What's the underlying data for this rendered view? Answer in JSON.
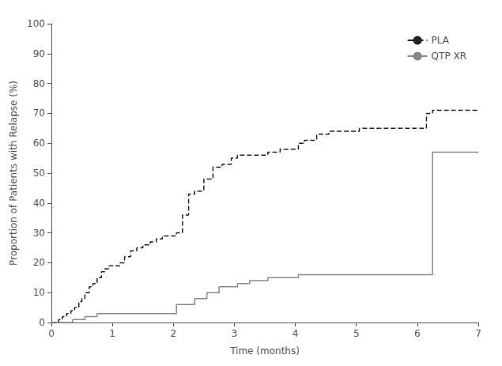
{
  "chart_data": {
    "type": "step",
    "xlabel": "Time (months)",
    "ylabel": "Proportion of Patients with Relapse (%)",
    "xlim": [
      0,
      7
    ],
    "ylim": [
      0,
      100
    ],
    "xticks": [
      0,
      1,
      2,
      3,
      4,
      5,
      6,
      7
    ],
    "yticks": [
      0,
      10,
      20,
      30,
      40,
      50,
      60,
      70,
      80,
      90,
      100
    ],
    "grid": false,
    "legend": "upper right",
    "series": [
      {
        "name": "PLA",
        "color": "#222222",
        "line_style": "dashed",
        "x": [
          0,
          0.12,
          0.18,
          0.25,
          0.32,
          0.38,
          0.45,
          0.5,
          0.55,
          0.62,
          0.68,
          0.75,
          0.82,
          0.88,
          0.95,
          1.05,
          1.12,
          1.2,
          1.3,
          1.4,
          1.5,
          1.62,
          1.72,
          1.82,
          1.92,
          2.05,
          2.15,
          2.25,
          2.35,
          2.5,
          2.65,
          2.8,
          2.95,
          3.05,
          3.25,
          3.55,
          3.75,
          4.05,
          4.15,
          4.35,
          4.55,
          5.05,
          5.5,
          6.15,
          6.25,
          7.0
        ],
        "values": [
          0,
          1,
          2,
          3,
          4,
          5,
          7,
          8,
          10,
          12,
          13,
          15,
          17,
          18,
          19,
          19,
          20,
          22,
          24,
          25,
          26,
          27,
          28,
          29,
          29,
          30,
          36,
          43,
          44,
          48,
          52,
          53,
          55,
          56,
          56,
          57,
          58,
          60,
          61,
          63,
          64,
          65,
          65,
          70,
          71,
          71
        ]
      },
      {
        "name": "QTP XR",
        "color": "#888888",
        "line_style": "solid",
        "x": [
          0,
          0.35,
          0.55,
          0.75,
          1.1,
          1.4,
          1.7,
          2.05,
          2.35,
          2.55,
          2.75,
          3.05,
          3.25,
          3.55,
          3.85,
          4.05,
          6.15,
          6.25,
          7.0
        ],
        "values": [
          0,
          1,
          2,
          3,
          3,
          3,
          3,
          6,
          8,
          10,
          12,
          13,
          14,
          15,
          15,
          16,
          16,
          57,
          57
        ]
      }
    ]
  }
}
